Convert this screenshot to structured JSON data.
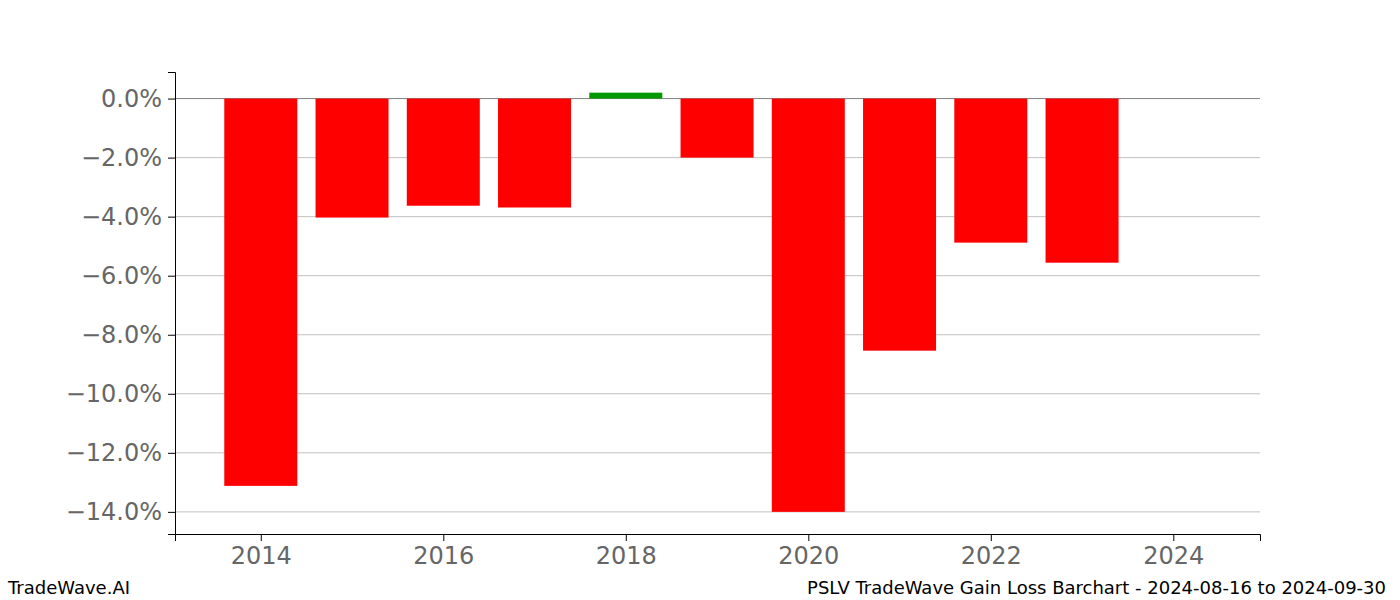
{
  "chart_data": {
    "type": "bar",
    "title": "PSLV TradeWave Gain Loss Barchart - 2024-08-16 to 2024-09-30",
    "source": "TradeWave.AI",
    "x": [
      2014,
      2015,
      2016,
      2017,
      2018,
      2019,
      2020,
      2021,
      2022,
      2023
    ],
    "values": [
      -13.12,
      -4.03,
      -3.63,
      -3.69,
      0.2,
      -2.0,
      -14.0,
      -8.54,
      -4.88,
      -5.56
    ],
    "colors": [
      "#ff0000",
      "#ff0000",
      "#ff0000",
      "#ff0000",
      "#009900",
      "#ff0000",
      "#ff0000",
      "#ff0000",
      "#ff0000",
      "#ff0000"
    ],
    "xlim": [
      2013.06,
      2024.95
    ],
    "xticks": [
      2014,
      2016,
      2018,
      2020,
      2022,
      2024
    ],
    "ylim": [
      -14.75,
      0.9
    ],
    "yticks": [
      {
        "value": 0,
        "label": "0.0%"
      },
      {
        "value": -2,
        "label": "−2.0%"
      },
      {
        "value": -4,
        "label": "−4.0%"
      },
      {
        "value": -6,
        "label": "−6.0%"
      },
      {
        "value": -8,
        "label": "−8.0%"
      },
      {
        "value": -10,
        "label": "−10.0%"
      },
      {
        "value": -12,
        "label": "−12.0%"
      },
      {
        "value": -14,
        "label": "−14.0%"
      }
    ],
    "grid": true
  }
}
